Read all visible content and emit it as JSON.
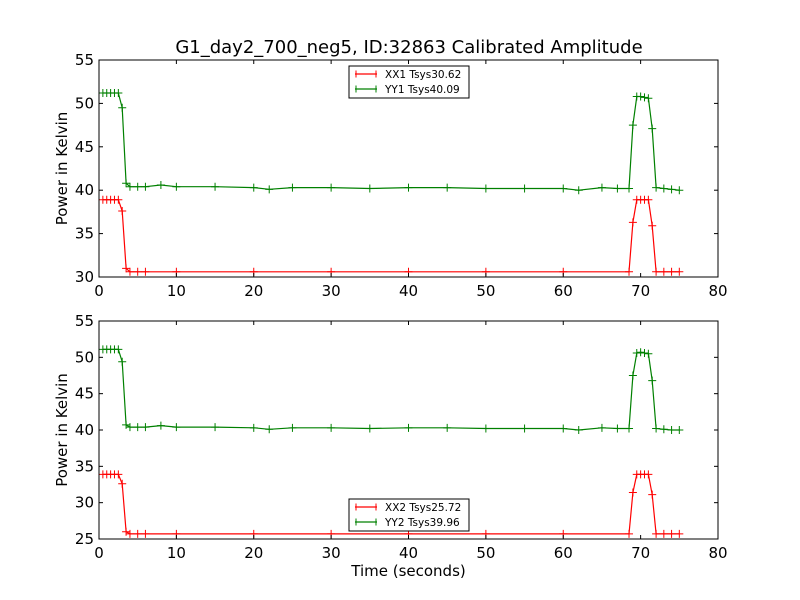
{
  "figure": {
    "title": "G1_day2_700_neg5, ID:32863 Calibrated Amplitude"
  },
  "chart_data": [
    {
      "type": "line",
      "title": "G1_day2_700_neg5, ID:32863 Calibrated Amplitude",
      "xlabel": "",
      "ylabel": "Power in Kelvin",
      "xlim": [
        0,
        80
      ],
      "ylim": [
        30,
        55
      ],
      "xticks": [
        "0",
        "10",
        "20",
        "30",
        "40",
        "50",
        "60",
        "70",
        "80"
      ],
      "yticks": [
        "30",
        "35",
        "40",
        "45",
        "50",
        "55"
      ],
      "grid": false,
      "legend_position": "top-center",
      "marker": "+",
      "series": [
        {
          "name": "XX1 Tsys30.62",
          "color": "#ff0000",
          "x": [
            0.5,
            1.0,
            1.5,
            2.0,
            2.5,
            3.0,
            3.5,
            4.0,
            5.0,
            6.0,
            10.0,
            20.0,
            30.0,
            40.0,
            50.0,
            60.0,
            68.5,
            69.0,
            69.5,
            70.0,
            70.5,
            71.0,
            71.5,
            72.0,
            73.0,
            74.0,
            75.0
          ],
          "values": [
            38.9,
            38.9,
            38.9,
            38.9,
            38.9,
            37.6,
            31.0,
            30.6,
            30.6,
            30.6,
            30.6,
            30.6,
            30.6,
            30.6,
            30.6,
            30.6,
            30.6,
            36.3,
            38.9,
            38.9,
            38.9,
            38.9,
            35.9,
            30.6,
            30.6,
            30.6,
            30.6
          ]
        },
        {
          "name": "YY1 Tsys40.09",
          "color": "#008000",
          "x": [
            0.5,
            1.0,
            1.5,
            2.0,
            2.5,
            3.0,
            3.5,
            4.0,
            5.0,
            6.0,
            8.0,
            10.0,
            15.0,
            20.0,
            22.0,
            25.0,
            30.0,
            35.0,
            40.0,
            45.0,
            50.0,
            55.0,
            60.0,
            62.0,
            65.0,
            67.0,
            68.5,
            69.0,
            69.5,
            70.0,
            70.5,
            71.0,
            71.5,
            72.0,
            73.0,
            74.0,
            75.0
          ],
          "values": [
            51.2,
            51.2,
            51.2,
            51.2,
            51.2,
            49.5,
            40.8,
            40.4,
            40.4,
            40.4,
            40.6,
            40.4,
            40.4,
            40.3,
            40.1,
            40.3,
            40.3,
            40.2,
            40.3,
            40.3,
            40.2,
            40.2,
            40.2,
            40.0,
            40.3,
            40.2,
            40.2,
            47.5,
            50.8,
            50.8,
            50.7,
            50.6,
            47.1,
            40.3,
            40.2,
            40.1,
            40.0
          ]
        }
      ]
    },
    {
      "type": "line",
      "title": "",
      "xlabel": "Time (seconds)",
      "ylabel": "Power in Kelvin",
      "xlim": [
        0,
        80
      ],
      "ylim": [
        25,
        55
      ],
      "xticks": [
        "0",
        "10",
        "20",
        "30",
        "40",
        "50",
        "60",
        "70",
        "80"
      ],
      "yticks": [
        "25",
        "30",
        "35",
        "40",
        "45",
        "50",
        "55"
      ],
      "grid": false,
      "legend_position": "bottom-center",
      "marker": "+",
      "series": [
        {
          "name": "XX2 Tsys25.72",
          "color": "#ff0000",
          "x": [
            0.5,
            1.0,
            1.5,
            2.0,
            2.5,
            3.0,
            3.5,
            4.0,
            5.0,
            6.0,
            10.0,
            20.0,
            30.0,
            40.0,
            50.0,
            60.0,
            68.5,
            69.0,
            69.5,
            70.0,
            70.5,
            71.0,
            71.5,
            72.0,
            73.0,
            74.0,
            75.0
          ],
          "values": [
            33.9,
            33.9,
            33.9,
            33.9,
            33.9,
            32.6,
            26.0,
            25.7,
            25.7,
            25.7,
            25.7,
            25.7,
            25.7,
            25.7,
            25.7,
            25.7,
            25.7,
            31.4,
            33.9,
            33.9,
            33.9,
            33.9,
            31.1,
            25.7,
            25.7,
            25.7,
            25.7
          ]
        },
        {
          "name": "YY2 Tsys39.96",
          "color": "#008000",
          "x": [
            0.5,
            1.0,
            1.5,
            2.0,
            2.5,
            3.0,
            3.5,
            4.0,
            5.0,
            6.0,
            8.0,
            10.0,
            15.0,
            20.0,
            22.0,
            25.0,
            30.0,
            35.0,
            40.0,
            45.0,
            50.0,
            55.0,
            60.0,
            62.0,
            65.0,
            67.0,
            68.5,
            69.0,
            69.5,
            70.0,
            70.5,
            71.0,
            71.5,
            72.0,
            73.0,
            74.0,
            75.0
          ],
          "values": [
            51.1,
            51.1,
            51.1,
            51.1,
            51.1,
            49.4,
            40.7,
            40.4,
            40.4,
            40.4,
            40.6,
            40.4,
            40.4,
            40.3,
            40.1,
            40.3,
            40.3,
            40.2,
            40.3,
            40.3,
            40.2,
            40.2,
            40.2,
            40.0,
            40.3,
            40.2,
            40.2,
            47.5,
            50.6,
            50.7,
            50.6,
            50.5,
            46.8,
            40.2,
            40.1,
            40.0,
            40.0
          ]
        }
      ]
    }
  ]
}
